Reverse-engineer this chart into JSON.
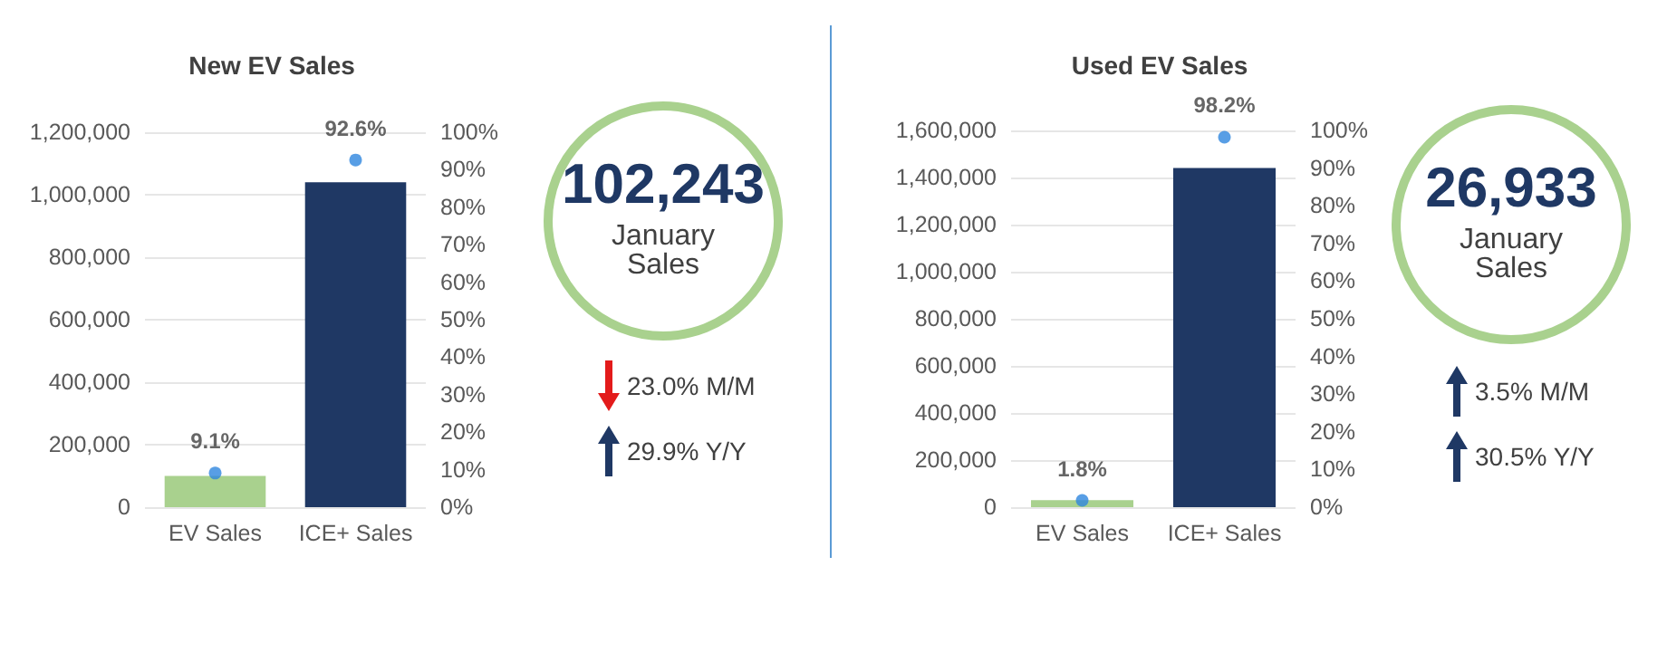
{
  "chart_data": [
    {
      "type": "bar",
      "title": "New EV Sales",
      "categories": [
        "EV Sales",
        "ICE+ Sales"
      ],
      "series": [
        {
          "type": "bar",
          "colors": [
            "#a9d18e",
            "#1f3864"
          ],
          "values": [
            100000,
            1040000
          ]
        },
        {
          "type": "scatter",
          "axis": "y2",
          "color": "#2e86de",
          "values": [
            9.1,
            92.6
          ],
          "value_labels": [
            "9.1%",
            "92.6%"
          ]
        }
      ],
      "ylim": [
        0,
        1200000
      ],
      "yticks": [
        {
          "value": 0,
          "label": "0"
        },
        {
          "value": 200000,
          "label": "200,000"
        },
        {
          "value": 400000,
          "label": "400,000"
        },
        {
          "value": 600000,
          "label": "600,000"
        },
        {
          "value": 800000,
          "label": "800,000"
        },
        {
          "value": 1000000,
          "label": "1,000,000"
        },
        {
          "value": 1200000,
          "label": "1,200,000"
        }
      ],
      "y2lim": [
        0,
        100
      ],
      "y2ticks": [
        {
          "value": 0,
          "label": "0%"
        },
        {
          "value": 10,
          "label": "10%"
        },
        {
          "value": 20,
          "label": "20%"
        },
        {
          "value": 30,
          "label": "30%"
        },
        {
          "value": 40,
          "label": "40%"
        },
        {
          "value": 50,
          "label": "50%"
        },
        {
          "value": 60,
          "label": "60%"
        },
        {
          "value": 70,
          "label": "70%"
        },
        {
          "value": 80,
          "label": "80%"
        },
        {
          "value": 90,
          "label": "90%"
        },
        {
          "value": 100,
          "label": "100%"
        }
      ],
      "grid": "y",
      "marker": "circle",
      "annotations": [
        "102,243",
        "January Sales",
        "23.0% M/M",
        "29.9% Y/Y"
      ]
    },
    {
      "type": "bar",
      "title": "Used EV Sales",
      "categories": [
        "EV Sales",
        "ICE+ Sales"
      ],
      "series": [
        {
          "type": "bar",
          "colors": [
            "#a9d18e",
            "#1f3864"
          ],
          "values": [
            30000,
            1440000
          ]
        },
        {
          "type": "scatter",
          "axis": "y2",
          "color": "#2e86de",
          "values": [
            1.8,
            98.2
          ],
          "value_labels": [
            "1.8%",
            "98.2%"
          ]
        }
      ],
      "ylim": [
        0,
        1600000
      ],
      "yticks": [
        {
          "value": 0,
          "label": "0"
        },
        {
          "value": 200000,
          "label": "200,000"
        },
        {
          "value": 400000,
          "label": "400,000"
        },
        {
          "value": 600000,
          "label": "600,000"
        },
        {
          "value": 800000,
          "label": "800,000"
        },
        {
          "value": 1000000,
          "label": "1,000,000"
        },
        {
          "value": 1200000,
          "label": "1,200,000"
        },
        {
          "value": 1400000,
          "label": "1,400,000"
        },
        {
          "value": 1600000,
          "label": "1,600,000"
        }
      ],
      "y2lim": [
        0,
        100
      ],
      "y2ticks": [
        {
          "value": 0,
          "label": "0%"
        },
        {
          "value": 10,
          "label": "10%"
        },
        {
          "value": 20,
          "label": "20%"
        },
        {
          "value": 30,
          "label": "30%"
        },
        {
          "value": 40,
          "label": "40%"
        },
        {
          "value": 50,
          "label": "50%"
        },
        {
          "value": 60,
          "label": "60%"
        },
        {
          "value": 70,
          "label": "70%"
        },
        {
          "value": 80,
          "label": "80%"
        },
        {
          "value": 90,
          "label": "90%"
        },
        {
          "value": 100,
          "label": "100%"
        }
      ],
      "grid": "y",
      "marker": "circle",
      "annotations": [
        "26,933",
        "January Sales",
        "3.5% M/M",
        "30.5% Y/Y"
      ]
    }
  ]
}
